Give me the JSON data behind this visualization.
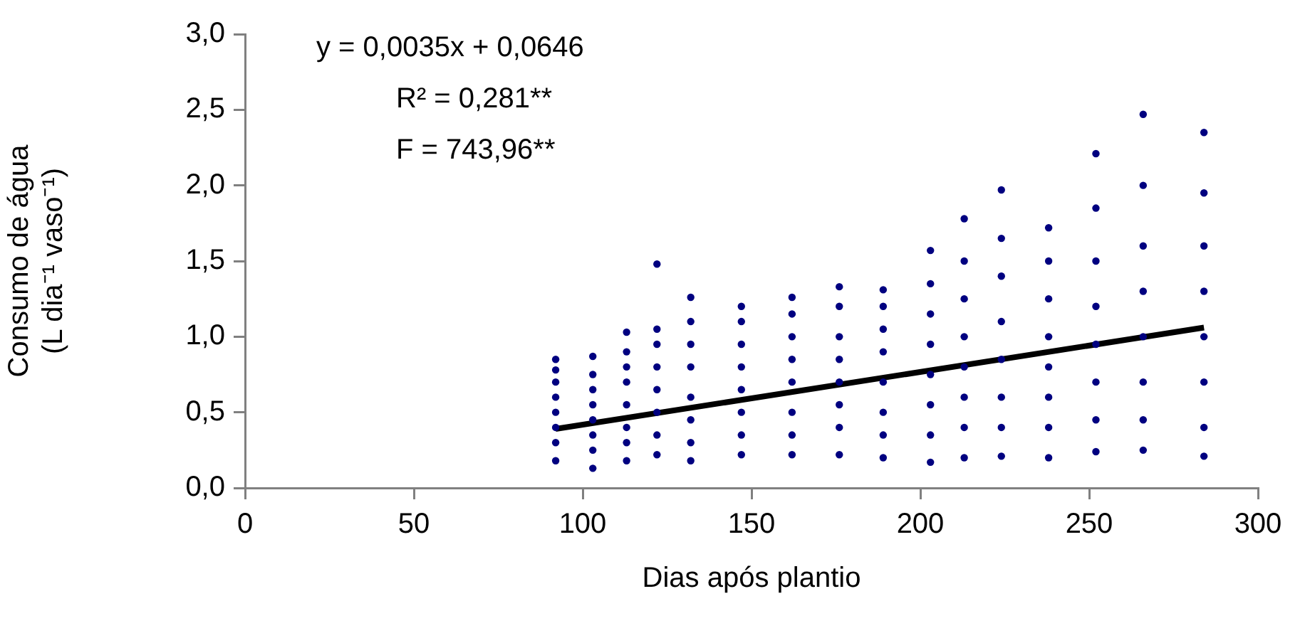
{
  "chart_data": {
    "type": "scatter",
    "xlabel": "Dias após plantio",
    "ylabel": "Consumo de água\n(L dia⁻¹ vaso⁻¹)",
    "xlim": [
      0,
      300
    ],
    "xticks": [
      0,
      50,
      100,
      150,
      200,
      250,
      300
    ],
    "ylim": [
      0,
      3
    ],
    "yticks": [
      {
        "value": 0,
        "label": "0,0"
      },
      {
        "value": 0.5,
        "label": "0,5"
      },
      {
        "value": 1,
        "label": "1,0"
      },
      {
        "value": 1.5,
        "label": "1,5"
      },
      {
        "value": 2,
        "label": "2,0"
      },
      {
        "value": 2.5,
        "label": "2,5"
      },
      {
        "value": 3,
        "label": "3,0"
      }
    ],
    "grid": false,
    "legend": false,
    "marker": "circle",
    "annotations": [
      "y = 0,0035x + 0,0646",
      "R² = 0,281**",
      "F = 743,96**"
    ],
    "series": [
      {
        "color": "#000080",
        "x": [
          92,
          92,
          92,
          92,
          92,
          92,
          92,
          92,
          103,
          103,
          103,
          103,
          103,
          103,
          103,
          103,
          113,
          113,
          113,
          113,
          113,
          113,
          113,
          113,
          122,
          122,
          122,
          122,
          122,
          122,
          122,
          122,
          132,
          132,
          132,
          132,
          132,
          132,
          132,
          132,
          147,
          147,
          147,
          147,
          147,
          147,
          147,
          147,
          162,
          162,
          162,
          162,
          162,
          162,
          162,
          162,
          176,
          176,
          176,
          176,
          176,
          176,
          176,
          176,
          189,
          189,
          189,
          189,
          189,
          189,
          189,
          189,
          203,
          203,
          203,
          203,
          203,
          203,
          203,
          203,
          213,
          213,
          213,
          213,
          213,
          213,
          213,
          213,
          224,
          224,
          224,
          224,
          224,
          224,
          224,
          224,
          238,
          238,
          238,
          238,
          238,
          238,
          238,
          238,
          252,
          252,
          252,
          252,
          252,
          252,
          252,
          252,
          266,
          266,
          266,
          266,
          266,
          266,
          266,
          266,
          284,
          284,
          284,
          284,
          284,
          284,
          284,
          284
        ],
        "values": [
          0.18,
          0.3,
          0.4,
          0.5,
          0.6,
          0.7,
          0.78,
          0.85,
          0.13,
          0.25,
          0.35,
          0.45,
          0.55,
          0.65,
          0.75,
          0.87,
          0.18,
          0.3,
          0.4,
          0.55,
          0.7,
          0.8,
          0.9,
          1.03,
          0.22,
          0.35,
          0.5,
          0.65,
          0.8,
          0.95,
          1.05,
          1.48,
          0.18,
          0.3,
          0.45,
          0.6,
          0.8,
          0.95,
          1.1,
          1.26,
          0.22,
          0.35,
          0.5,
          0.65,
          0.8,
          0.95,
          1.1,
          1.2,
          0.22,
          0.35,
          0.5,
          0.7,
          0.85,
          1.0,
          1.15,
          1.26,
          0.22,
          0.4,
          0.55,
          0.7,
          0.85,
          1.0,
          1.2,
          1.33,
          0.2,
          0.35,
          0.5,
          0.7,
          0.9,
          1.05,
          1.2,
          1.31,
          0.17,
          0.35,
          0.55,
          0.75,
          0.95,
          1.15,
          1.35,
          1.57,
          0.2,
          0.4,
          0.6,
          0.8,
          1.0,
          1.25,
          1.5,
          1.78,
          0.21,
          0.4,
          0.6,
          0.85,
          1.1,
          1.4,
          1.65,
          1.97,
          0.2,
          0.4,
          0.6,
          0.8,
          1.0,
          1.25,
          1.5,
          1.72,
          0.24,
          0.45,
          0.7,
          0.95,
          1.2,
          1.5,
          1.85,
          2.21,
          0.25,
          0.45,
          0.7,
          1.0,
          1.3,
          1.6,
          2.0,
          2.47,
          0.21,
          0.4,
          0.7,
          1.0,
          1.3,
          1.6,
          1.95,
          2.35
        ]
      },
      {
        "type": "line",
        "color": "#000000",
        "x": [
          92,
          284
        ],
        "values": [
          0.39,
          1.06
        ],
        "marker": "none"
      }
    ]
  }
}
